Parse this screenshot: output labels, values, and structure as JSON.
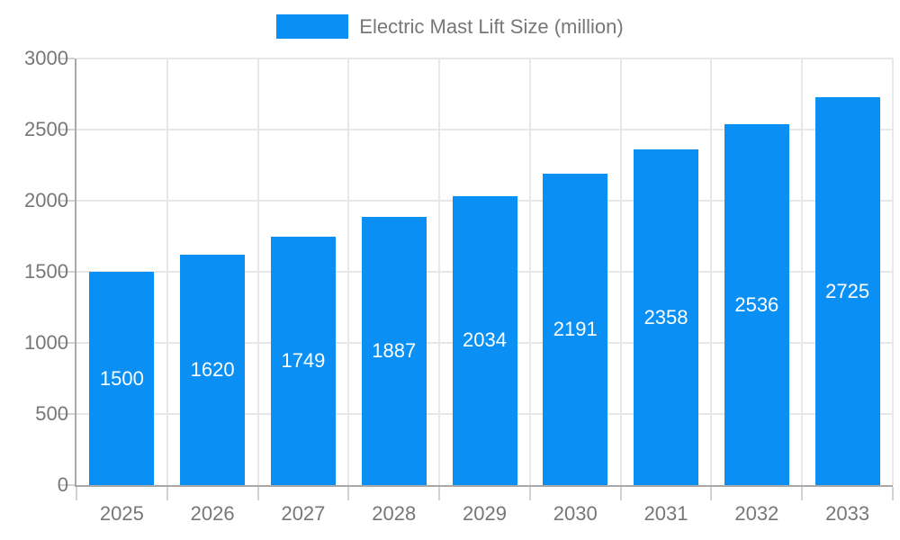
{
  "chart_data": {
    "type": "bar",
    "title": "Electric Mast Lift Size (million)",
    "legend": [
      "Electric Mast Lift Size (million)"
    ],
    "legend_position": "top",
    "categories": [
      "2025",
      "2026",
      "2027",
      "2028",
      "2029",
      "2030",
      "2031",
      "2032",
      "2033"
    ],
    "values": [
      1500,
      1620,
      1749,
      1887,
      2034,
      2191,
      2358,
      2536,
      2725
    ],
    "xlabel": "",
    "ylabel": "",
    "ylim": [
      0,
      3000
    ],
    "yticks": [
      0,
      500,
      1000,
      1500,
      2000,
      2500,
      3000
    ],
    "grid": true,
    "bar_value_labels_shown": true
  },
  "colors": {
    "bar": "#0a90f5",
    "bar_value_label": "#ffffff",
    "axis_text": "#777777",
    "axis_line": "#a8a8a8",
    "grid_line": "#e7e7e7",
    "tick_mark": "#d2d2d2",
    "background": "#ffffff"
  }
}
